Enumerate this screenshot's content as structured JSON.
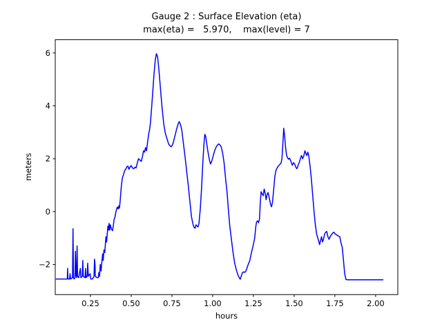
{
  "figure": {
    "title_line1": "Gauge 2 : Surface Elevation (eta)",
    "title_line2": "max(eta) =   5.970,    max(level) = 7"
  },
  "chart_data": {
    "type": "line",
    "title": "Gauge 2 : Surface Elevation (eta)",
    "subtitle": "max(eta) =   5.970,    max(level) = 7",
    "max_eta": 5.97,
    "max_level": 7,
    "xlabel": "hours",
    "ylabel": "meters",
    "xlim": [
      0.034,
      2.136
    ],
    "ylim": [
      -3.14,
      6.5
    ],
    "x_ticks": [
      0.25,
      0.5,
      0.75,
      1.0,
      1.25,
      1.5,
      1.75,
      2.0
    ],
    "x_tick_labels": [
      "0.25",
      "0.50",
      "0.75",
      "1.00",
      "1.25",
      "1.50",
      "1.75",
      "2.00"
    ],
    "y_ticks": [
      -2,
      0,
      2,
      4,
      6
    ],
    "y_tick_labels": [
      "−2",
      "0",
      "2",
      "4",
      "6"
    ],
    "grid": false,
    "legend": "none",
    "line_color": "#0000ff",
    "axis_color": "#000000",
    "background_color": "#ffffff",
    "series": [
      {
        "name": "eta",
        "points": [
          [
            0.04,
            -2.55
          ],
          [
            0.06,
            -2.55
          ],
          [
            0.08,
            -2.55
          ],
          [
            0.095,
            -2.55
          ],
          [
            0.108,
            -2.55
          ],
          [
            0.11,
            -2.15
          ],
          [
            0.112,
            -2.55
          ],
          [
            0.122,
            -2.55
          ],
          [
            0.125,
            -2.35
          ],
          [
            0.128,
            -2.55
          ],
          [
            0.14,
            -2.5
          ],
          [
            0.143,
            -0.65
          ],
          [
            0.146,
            -2.5
          ],
          [
            0.15,
            -2.55
          ],
          [
            0.155,
            -2.5
          ],
          [
            0.158,
            -1.5
          ],
          [
            0.161,
            -2.4
          ],
          [
            0.165,
            -2.5
          ],
          [
            0.168,
            -1.3
          ],
          [
            0.171,
            -2.45
          ],
          [
            0.178,
            -2.5
          ],
          [
            0.188,
            -2.15
          ],
          [
            0.191,
            -2.5
          ],
          [
            0.2,
            -2.45
          ],
          [
            0.203,
            -1.85
          ],
          [
            0.206,
            -2.45
          ],
          [
            0.217,
            -2.5
          ],
          [
            0.22,
            -2.15
          ],
          [
            0.223,
            -2.5
          ],
          [
            0.23,
            -2.45
          ],
          [
            0.233,
            -1.95
          ],
          [
            0.237,
            -2.45
          ],
          [
            0.248,
            -2.35
          ],
          [
            0.252,
            -2.55
          ],
          [
            0.262,
            -2.55
          ],
          [
            0.272,
            -2.45
          ],
          [
            0.275,
            -1.8
          ],
          [
            0.278,
            -2.0
          ],
          [
            0.28,
            -2.45
          ],
          [
            0.29,
            -2.5
          ],
          [
            0.298,
            -2.5
          ],
          [
            0.302,
            -2.3
          ],
          [
            0.306,
            -2.45
          ],
          [
            0.31,
            -2.0
          ],
          [
            0.315,
            -2.25
          ],
          [
            0.32,
            -1.9
          ],
          [
            0.325,
            -1.6
          ],
          [
            0.328,
            -1.85
          ],
          [
            0.333,
            -1.45
          ],
          [
            0.338,
            -1.55
          ],
          [
            0.342,
            -1.2
          ],
          [
            0.345,
            -0.95
          ],
          [
            0.349,
            -1.15
          ],
          [
            0.353,
            -0.85
          ],
          [
            0.357,
            -0.55
          ],
          [
            0.361,
            -0.7
          ],
          [
            0.364,
            -0.45
          ],
          [
            0.368,
            -0.7
          ],
          [
            0.372,
            -0.5
          ],
          [
            0.376,
            -0.6
          ],
          [
            0.38,
            -0.68
          ],
          [
            0.386,
            -0.72
          ],
          [
            0.391,
            -0.5
          ],
          [
            0.395,
            -0.3
          ],
          [
            0.4,
            -0.22
          ],
          [
            0.405,
            -0.05
          ],
          [
            0.41,
            0.08
          ],
          [
            0.415,
            0.17
          ],
          [
            0.42,
            0.1
          ],
          [
            0.425,
            0.22
          ],
          [
            0.428,
            0.13
          ],
          [
            0.433,
            0.45
          ],
          [
            0.438,
            0.85
          ],
          [
            0.441,
            1.05
          ],
          [
            0.447,
            1.3
          ],
          [
            0.452,
            1.38
          ],
          [
            0.458,
            1.5
          ],
          [
            0.462,
            1.57
          ],
          [
            0.468,
            1.62
          ],
          [
            0.474,
            1.7
          ],
          [
            0.48,
            1.72
          ],
          [
            0.486,
            1.6
          ],
          [
            0.493,
            1.68
          ],
          [
            0.5,
            1.74
          ],
          [
            0.508,
            1.65
          ],
          [
            0.515,
            1.62
          ],
          [
            0.524,
            1.68
          ],
          [
            0.53,
            1.65
          ],
          [
            0.538,
            1.85
          ],
          [
            0.545,
            2.0
          ],
          [
            0.553,
            1.95
          ],
          [
            0.562,
            1.9
          ],
          [
            0.57,
            2.1
          ],
          [
            0.576,
            2.3
          ],
          [
            0.582,
            2.25
          ],
          [
            0.588,
            2.42
          ],
          [
            0.594,
            2.3
          ],
          [
            0.6,
            2.6
          ],
          [
            0.608,
            2.95
          ],
          [
            0.613,
            3.1
          ],
          [
            0.618,
            3.35
          ],
          [
            0.625,
            3.9
          ],
          [
            0.632,
            4.5
          ],
          [
            0.64,
            5.2
          ],
          [
            0.648,
            5.75
          ],
          [
            0.655,
            5.97
          ],
          [
            0.662,
            5.85
          ],
          [
            0.668,
            5.5
          ],
          [
            0.675,
            5.0
          ],
          [
            0.683,
            4.4
          ],
          [
            0.69,
            3.9
          ],
          [
            0.7,
            3.3
          ],
          [
            0.71,
            2.95
          ],
          [
            0.72,
            2.75
          ],
          [
            0.73,
            2.55
          ],
          [
            0.737,
            2.5
          ],
          [
            0.745,
            2.45
          ],
          [
            0.752,
            2.5
          ],
          [
            0.76,
            2.65
          ],
          [
            0.77,
            2.9
          ],
          [
            0.78,
            3.15
          ],
          [
            0.79,
            3.35
          ],
          [
            0.795,
            3.4
          ],
          [
            0.802,
            3.3
          ],
          [
            0.81,
            3.1
          ],
          [
            0.82,
            2.6
          ],
          [
            0.83,
            2.1
          ],
          [
            0.84,
            1.55
          ],
          [
            0.85,
            1.0
          ],
          [
            0.86,
            0.4
          ],
          [
            0.87,
            -0.2
          ],
          [
            0.88,
            -0.5
          ],
          [
            0.886,
            -0.6
          ],
          [
            0.892,
            -0.63
          ],
          [
            0.898,
            -0.5
          ],
          [
            0.904,
            -0.55
          ],
          [
            0.91,
            -0.58
          ],
          [
            0.916,
            -0.45
          ],
          [
            0.924,
            0.1
          ],
          [
            0.932,
            0.9
          ],
          [
            0.94,
            1.9
          ],
          [
            0.947,
            2.6
          ],
          [
            0.952,
            2.92
          ],
          [
            0.957,
            2.85
          ],
          [
            0.963,
            2.6
          ],
          [
            0.97,
            2.3
          ],
          [
            0.98,
            1.95
          ],
          [
            0.987,
            1.8
          ],
          [
            0.994,
            1.9
          ],
          [
            1.003,
            2.1
          ],
          [
            1.012,
            2.3
          ],
          [
            1.022,
            2.45
          ],
          [
            1.03,
            2.52
          ],
          [
            1.037,
            2.56
          ],
          [
            1.045,
            2.52
          ],
          [
            1.052,
            2.45
          ],
          [
            1.06,
            2.25
          ],
          [
            1.07,
            1.85
          ],
          [
            1.08,
            1.2
          ],
          [
            1.088,
            0.75
          ],
          [
            1.096,
            0.1
          ],
          [
            1.105,
            -0.55
          ],
          [
            1.114,
            -1.0
          ],
          [
            1.125,
            -1.55
          ],
          [
            1.135,
            -1.95
          ],
          [
            1.145,
            -2.2
          ],
          [
            1.155,
            -2.4
          ],
          [
            1.165,
            -2.52
          ],
          [
            1.169,
            -2.56
          ],
          [
            1.175,
            -2.45
          ],
          [
            1.182,
            -2.32
          ],
          [
            1.19,
            -2.28
          ],
          [
            1.197,
            -2.3
          ],
          [
            1.203,
            -2.26
          ],
          [
            1.21,
            -2.15
          ],
          [
            1.218,
            -2.0
          ],
          [
            1.228,
            -1.85
          ],
          [
            1.238,
            -1.55
          ],
          [
            1.248,
            -1.3
          ],
          [
            1.258,
            -1.0
          ],
          [
            1.264,
            -0.6
          ],
          [
            1.269,
            -0.4
          ],
          [
            1.275,
            -0.35
          ],
          [
            1.281,
            -0.42
          ],
          [
            1.287,
            -0.3
          ],
          [
            1.292,
            0.3
          ],
          [
            1.297,
            0.75
          ],
          [
            1.303,
            0.68
          ],
          [
            1.31,
            0.6
          ],
          [
            1.316,
            0.85
          ],
          [
            1.322,
            0.7
          ],
          [
            1.328,
            0.45
          ],
          [
            1.334,
            0.65
          ],
          [
            1.34,
            0.72
          ],
          [
            1.348,
            0.5
          ],
          [
            1.355,
            0.28
          ],
          [
            1.361,
            0.18
          ],
          [
            1.367,
            0.35
          ],
          [
            1.374,
            0.8
          ],
          [
            1.381,
            1.3
          ],
          [
            1.388,
            1.55
          ],
          [
            1.395,
            1.65
          ],
          [
            1.403,
            1.72
          ],
          [
            1.411,
            1.78
          ],
          [
            1.419,
            1.82
          ],
          [
            1.425,
            2.0
          ],
          [
            1.43,
            2.5
          ],
          [
            1.436,
            3.15
          ],
          [
            1.441,
            2.9
          ],
          [
            1.447,
            2.45
          ],
          [
            1.453,
            2.15
          ],
          [
            1.458,
            2.05
          ],
          [
            1.465,
            1.98
          ],
          [
            1.472,
            2.02
          ],
          [
            1.48,
            1.9
          ],
          [
            1.489,
            1.75
          ],
          [
            1.496,
            1.85
          ],
          [
            1.503,
            1.8
          ],
          [
            1.51,
            1.68
          ],
          [
            1.517,
            1.62
          ],
          [
            1.524,
            1.75
          ],
          [
            1.531,
            1.85
          ],
          [
            1.538,
            2.0
          ],
          [
            1.545,
            2.12
          ],
          [
            1.552,
            2.0
          ],
          [
            1.559,
            2.1
          ],
          [
            1.566,
            2.3
          ],
          [
            1.572,
            2.2
          ],
          [
            1.578,
            2.12
          ],
          [
            1.584,
            2.25
          ],
          [
            1.59,
            2.1
          ],
          [
            1.598,
            1.7
          ],
          [
            1.606,
            1.2
          ],
          [
            1.614,
            0.6
          ],
          [
            1.622,
            0.0
          ],
          [
            1.63,
            -0.5
          ],
          [
            1.638,
            -0.85
          ],
          [
            1.644,
            -0.98
          ],
          [
            1.65,
            -1.1
          ],
          [
            1.656,
            -1.25
          ],
          [
            1.662,
            -1.1
          ],
          [
            1.668,
            -0.95
          ],
          [
            1.674,
            -1.15
          ],
          [
            1.68,
            -1.05
          ],
          [
            1.687,
            -0.85
          ],
          [
            1.694,
            -0.78
          ],
          [
            1.7,
            -0.75
          ],
          [
            1.707,
            -0.95
          ],
          [
            1.714,
            -1.05
          ],
          [
            1.721,
            -0.95
          ],
          [
            1.728,
            -0.88
          ],
          [
            1.736,
            -0.82
          ],
          [
            1.744,
            -0.78
          ],
          [
            1.752,
            -0.85
          ],
          [
            1.76,
            -0.88
          ],
          [
            1.77,
            -0.92
          ],
          [
            1.78,
            -0.95
          ],
          [
            1.788,
            -1.2
          ],
          [
            1.795,
            -1.35
          ],
          [
            1.802,
            -1.8
          ],
          [
            1.81,
            -2.35
          ],
          [
            1.818,
            -2.57
          ],
          [
            1.83,
            -2.58
          ],
          [
            1.86,
            -2.58
          ],
          [
            1.9,
            -2.58
          ],
          [
            1.95,
            -2.58
          ],
          [
            2.0,
            -2.58
          ],
          [
            2.045,
            -2.58
          ]
        ]
      }
    ]
  }
}
